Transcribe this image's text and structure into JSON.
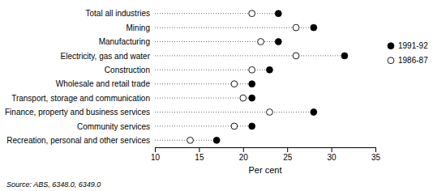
{
  "chart_data": {
    "type": "dot",
    "categories": [
      "Total all industries",
      "Mining",
      "Manufacturing",
      "Electricity, gas and water",
      "Construction",
      "Wholesale and retail trade",
      "Transport, storage and communication",
      "Finance, property and business services",
      "Community services",
      "Recreation, personal and other services"
    ],
    "series": [
      {
        "name": "1991-92",
        "color": "black",
        "values": [
          24.0,
          28.0,
          24.0,
          31.5,
          23.0,
          21.0,
          21.0,
          28.0,
          21.0,
          17.0
        ]
      },
      {
        "name": "1986-87",
        "color": "white",
        "values": [
          21.0,
          26.0,
          22.0,
          26.0,
          21.0,
          19.0,
          20.0,
          23.0,
          19.0,
          14.0
        ]
      }
    ],
    "xlabel": "Per cent",
    "xlim": [
      10,
      35
    ],
    "xticks": [
      10,
      15,
      20,
      25,
      30,
      35
    ],
    "source": "Source: ABS, 6348.0, 6349.0",
    "marker": "circle",
    "line_style": "dotted",
    "legend": "right",
    "grid": false
  }
}
